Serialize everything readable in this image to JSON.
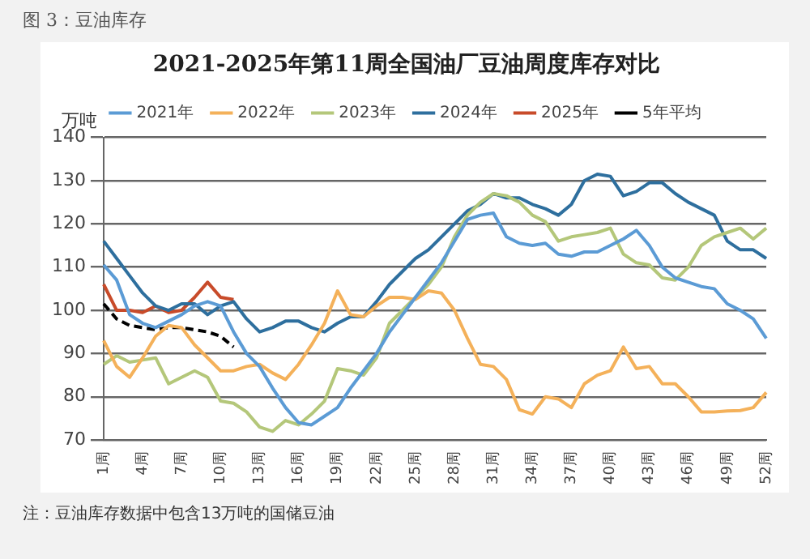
{
  "chart_data": {
    "type": "line",
    "title": "2021-2025年第11周全国油厂豆油周度库存对比",
    "subtitle": "图 3：豆油库存",
    "ylabel": "万吨",
    "categories": [
      "1周",
      null,
      null,
      "4周",
      null,
      null,
      "7周",
      null,
      null,
      "10周",
      null,
      null,
      "13周",
      null,
      null,
      "16周",
      null,
      null,
      "19周",
      null,
      null,
      "22周",
      null,
      null,
      "25周",
      null,
      null,
      "28周",
      null,
      null,
      "31周",
      null,
      null,
      "34周",
      null,
      null,
      "37周",
      null,
      null,
      "40周",
      null,
      null,
      "43周",
      null,
      null,
      "46周",
      null,
      null,
      "49周",
      null,
      null,
      "52周"
    ],
    "series": [
      {
        "name": "2021年",
        "color": "#5b9bd5",
        "values": [
          110.5,
          107,
          99,
          97,
          96,
          97.5,
          99,
          101,
          102,
          101,
          95,
          90,
          87,
          82,
          77.5,
          74,
          73.5,
          75.5,
          77.5,
          82,
          86,
          90,
          95,
          99,
          103,
          107,
          111,
          116,
          121,
          122,
          122.5,
          117,
          115.5,
          115,
          115.5,
          113,
          112.5,
          113.5,
          113.5,
          115,
          116.5,
          118.5,
          115,
          110,
          107.5,
          106.5,
          105.5,
          105,
          101.5,
          100,
          98,
          93.5
        ]
      },
      {
        "name": "2022年",
        "color": "#f4b15a",
        "values": [
          93,
          87,
          84.5,
          89,
          94,
          96.5,
          96,
          92,
          89,
          86,
          86,
          87,
          87.5,
          85.5,
          84,
          87.5,
          92,
          97,
          104.5,
          99,
          98.5,
          101,
          103,
          103,
          102.5,
          104.5,
          104,
          100,
          93.5,
          87.5,
          87,
          84,
          77,
          76,
          80,
          79.5,
          77.5,
          83,
          85,
          86,
          91.5,
          86.5,
          87,
          83,
          83,
          80,
          76.5,
          76.5,
          76.7,
          76.8,
          77.5,
          81
        ]
      },
      {
        "name": "2023年",
        "color": "#b4c77a",
        "values": [
          87.5,
          89.5,
          88,
          88.5,
          89,
          83,
          84.5,
          86,
          84.5,
          79,
          78.5,
          76.5,
          73,
          72,
          74.5,
          73.5,
          76,
          79,
          86.5,
          86,
          85,
          89,
          97,
          100,
          103,
          106,
          110,
          117,
          122,
          125,
          127,
          126.5,
          125,
          122,
          120.5,
          116,
          117,
          117.5,
          118,
          119,
          113,
          111,
          110.5,
          107.5,
          107,
          110,
          115,
          117,
          118,
          119,
          116.5,
          119
        ]
      },
      {
        "name": "2024年",
        "color": "#2e6f9e",
        "values": [
          116,
          112,
          108,
          104,
          101,
          100,
          101.5,
          101.5,
          99,
          101,
          102,
          98,
          95,
          96,
          97.5,
          97.5,
          96,
          95,
          97,
          98.5,
          98.5,
          102,
          106,
          109,
          112,
          114,
          117,
          120,
          123,
          124.5,
          127,
          126,
          126,
          124.5,
          123.5,
          122,
          124.5,
          130,
          131.5,
          131,
          126.5,
          127.5,
          129.5,
          129.5,
          127,
          125,
          123.5,
          122,
          116,
          114,
          114,
          112
        ]
      },
      {
        "name": "2025年",
        "color": "#c84b2a",
        "values": [
          106,
          100,
          100,
          99.5,
          101,
          99.5,
          100,
          103,
          106.5,
          103,
          102.5,
          null,
          null,
          null,
          null,
          null,
          null,
          null,
          null,
          null,
          null,
          null,
          null,
          null,
          null,
          null,
          null,
          null,
          null,
          null,
          null,
          null,
          null,
          null,
          null,
          null,
          null,
          null,
          null,
          null,
          null,
          null,
          null,
          null,
          null,
          null,
          null,
          null,
          null,
          null,
          null,
          null
        ]
      },
      {
        "name": "5年平均",
        "color": "#000000",
        "line_style": "dashed",
        "values": [
          101.5,
          98,
          96.5,
          96,
          95.5,
          96,
          96,
          95.5,
          95,
          94,
          91.5,
          null,
          null,
          null,
          null,
          null,
          null,
          null,
          null,
          null,
          null,
          null,
          null,
          null,
          null,
          null,
          null,
          null,
          null,
          null,
          null,
          null,
          null,
          null,
          null,
          null,
          null,
          null,
          null,
          null,
          null,
          null,
          null,
          null,
          null,
          null,
          null,
          null,
          null,
          null,
          null,
          null
        ]
      }
    ],
    "ylim": [
      70,
      140
    ],
    "yticks": [
      70,
      80,
      90,
      100,
      110,
      120,
      130,
      140
    ],
    "grid": "y",
    "legend": "top",
    "marker": "none",
    "line_style": "solid",
    "annotations": [
      "注：豆油库存数据中包含13万吨的国储豆油"
    ]
  }
}
